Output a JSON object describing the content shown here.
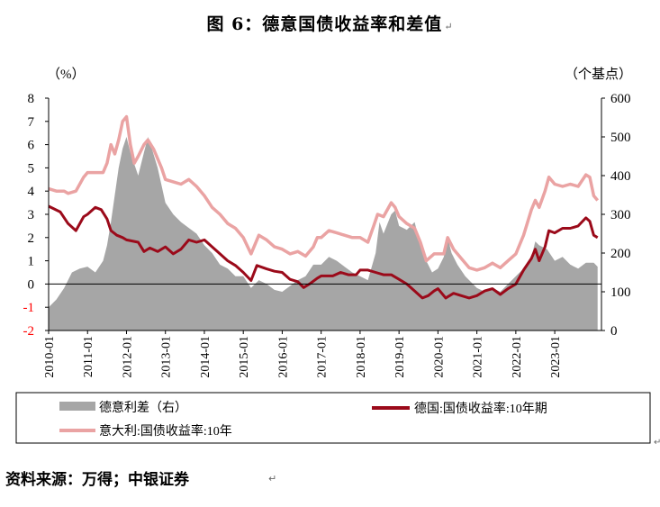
{
  "title": "图 6：德意国债收益率和差值",
  "paragraph_mark": "↵",
  "source": "资料来源：万得；中银证券",
  "colors": {
    "spread": "#a6a6a6",
    "de": "#9b0a1a",
    "it": "#eaa3a3",
    "negative_tick": "#ff0000"
  },
  "chart_data": {
    "type": "line+area",
    "left_axis": {
      "label": "（%）",
      "ylim": [
        -2,
        8
      ],
      "ticks": [
        "8",
        "7",
        "6",
        "5",
        "4",
        "3",
        "2",
        "1",
        "0",
        "-1",
        "-2"
      ]
    },
    "right_axis": {
      "label": "（个基点）",
      "ylim": [
        0,
        600
      ],
      "ticks": [
        "600",
        "500",
        "400",
        "300",
        "200",
        "100",
        "0"
      ]
    },
    "x_ticks": [
      "2010-01",
      "2011-01",
      "2012-01",
      "2013-01",
      "2014-01",
      "2015-01",
      "2016-01",
      "2017-01",
      "2018-01",
      "2019-01",
      "2020-01",
      "2021-01",
      "2022-01",
      "2023-01"
    ],
    "x_range": [
      2010.0,
      2024.2
    ],
    "legend": [
      "德意利差（右）",
      "德国:国债收益率:10年期",
      "意大利:国债收益率:10年"
    ],
    "series": [
      {
        "name": "德意利差（右）",
        "axis": "right",
        "type": "area",
        "points": [
          [
            2010.0,
            60
          ],
          [
            2010.2,
            80
          ],
          [
            2010.4,
            110
          ],
          [
            2010.6,
            150
          ],
          [
            2010.8,
            160
          ],
          [
            2011.0,
            165
          ],
          [
            2011.2,
            150
          ],
          [
            2011.4,
            180
          ],
          [
            2011.5,
            220
          ],
          [
            2011.6,
            280
          ],
          [
            2011.7,
            350
          ],
          [
            2011.8,
            420
          ],
          [
            2011.9,
            470
          ],
          [
            2012.0,
            500
          ],
          [
            2012.1,
            460
          ],
          [
            2012.2,
            430
          ],
          [
            2012.3,
            400
          ],
          [
            2012.45,
            460
          ],
          [
            2012.55,
            500
          ],
          [
            2012.65,
            470
          ],
          [
            2012.8,
            420
          ],
          [
            2013.0,
            330
          ],
          [
            2013.2,
            300
          ],
          [
            2013.4,
            280
          ],
          [
            2013.6,
            265
          ],
          [
            2013.8,
            250
          ],
          [
            2014.0,
            220
          ],
          [
            2014.2,
            200
          ],
          [
            2014.4,
            170
          ],
          [
            2014.6,
            160
          ],
          [
            2014.8,
            140
          ],
          [
            2015.0,
            140
          ],
          [
            2015.2,
            110
          ],
          [
            2015.4,
            130
          ],
          [
            2015.6,
            120
          ],
          [
            2015.8,
            105
          ],
          [
            2016.0,
            100
          ],
          [
            2016.2,
            115
          ],
          [
            2016.4,
            130
          ],
          [
            2016.6,
            140
          ],
          [
            2016.8,
            170
          ],
          [
            2017.0,
            170
          ],
          [
            2017.2,
            190
          ],
          [
            2017.4,
            180
          ],
          [
            2017.6,
            165
          ],
          [
            2017.8,
            150
          ],
          [
            2018.0,
            140
          ],
          [
            2018.2,
            130
          ],
          [
            2018.4,
            200
          ],
          [
            2018.5,
            280
          ],
          [
            2018.6,
            250
          ],
          [
            2018.8,
            300
          ],
          [
            2018.9,
            310
          ],
          [
            2019.0,
            270
          ],
          [
            2019.2,
            260
          ],
          [
            2019.4,
            280
          ],
          [
            2019.5,
            240
          ],
          [
            2019.7,
            180
          ],
          [
            2019.85,
            150
          ],
          [
            2020.0,
            160
          ],
          [
            2020.15,
            190
          ],
          [
            2020.25,
            240
          ],
          [
            2020.35,
            200
          ],
          [
            2020.5,
            170
          ],
          [
            2020.7,
            140
          ],
          [
            2020.9,
            120
          ],
          [
            2021.0,
            110
          ],
          [
            2021.2,
            100
          ],
          [
            2021.4,
            110
          ],
          [
            2021.6,
            100
          ],
          [
            2021.8,
            120
          ],
          [
            2022.0,
            140
          ],
          [
            2022.2,
            160
          ],
          [
            2022.4,
            190
          ],
          [
            2022.5,
            230
          ],
          [
            2022.6,
            220
          ],
          [
            2022.8,
            210
          ],
          [
            2023.0,
            180
          ],
          [
            2023.2,
            190
          ],
          [
            2023.4,
            170
          ],
          [
            2023.6,
            160
          ],
          [
            2023.8,
            175
          ],
          [
            2024.0,
            175
          ],
          [
            2024.1,
            165
          ]
        ]
      },
      {
        "name": "德国:国债收益率:10年期",
        "axis": "left",
        "type": "line",
        "points": [
          [
            2010.0,
            3.35
          ],
          [
            2010.3,
            3.1
          ],
          [
            2010.5,
            2.6
          ],
          [
            2010.7,
            2.3
          ],
          [
            2010.9,
            2.9
          ],
          [
            2011.0,
            3.0
          ],
          [
            2011.2,
            3.3
          ],
          [
            2011.35,
            3.2
          ],
          [
            2011.5,
            2.8
          ],
          [
            2011.6,
            2.3
          ],
          [
            2011.75,
            2.1
          ],
          [
            2011.9,
            2.0
          ],
          [
            2012.0,
            1.9
          ],
          [
            2012.3,
            1.8
          ],
          [
            2012.45,
            1.4
          ],
          [
            2012.6,
            1.55
          ],
          [
            2012.8,
            1.4
          ],
          [
            2013.0,
            1.6
          ],
          [
            2013.2,
            1.3
          ],
          [
            2013.4,
            1.5
          ],
          [
            2013.6,
            1.9
          ],
          [
            2013.8,
            1.8
          ],
          [
            2014.0,
            1.9
          ],
          [
            2014.2,
            1.6
          ],
          [
            2014.4,
            1.3
          ],
          [
            2014.6,
            1.0
          ],
          [
            2014.8,
            0.8
          ],
          [
            2015.0,
            0.5
          ],
          [
            2015.2,
            0.15
          ],
          [
            2015.35,
            0.8
          ],
          [
            2015.6,
            0.65
          ],
          [
            2015.8,
            0.55
          ],
          [
            2016.0,
            0.5
          ],
          [
            2016.2,
            0.2
          ],
          [
            2016.4,
            0.1
          ],
          [
            2016.55,
            -0.15
          ],
          [
            2016.7,
            0.0
          ],
          [
            2016.9,
            0.25
          ],
          [
            2017.0,
            0.35
          ],
          [
            2017.3,
            0.35
          ],
          [
            2017.5,
            0.5
          ],
          [
            2017.7,
            0.4
          ],
          [
            2017.9,
            0.4
          ],
          [
            2018.0,
            0.6
          ],
          [
            2018.2,
            0.6
          ],
          [
            2018.4,
            0.5
          ],
          [
            2018.6,
            0.4
          ],
          [
            2018.8,
            0.4
          ],
          [
            2019.0,
            0.2
          ],
          [
            2019.2,
            0.0
          ],
          [
            2019.4,
            -0.3
          ],
          [
            2019.6,
            -0.6
          ],
          [
            2019.75,
            -0.5
          ],
          [
            2019.9,
            -0.3
          ],
          [
            2020.0,
            -0.2
          ],
          [
            2020.2,
            -0.6
          ],
          [
            2020.4,
            -0.4
          ],
          [
            2020.6,
            -0.5
          ],
          [
            2020.8,
            -0.6
          ],
          [
            2021.0,
            -0.5
          ],
          [
            2021.2,
            -0.3
          ],
          [
            2021.4,
            -0.2
          ],
          [
            2021.6,
            -0.45
          ],
          [
            2021.8,
            -0.2
          ],
          [
            2022.0,
            0.0
          ],
          [
            2022.2,
            0.6
          ],
          [
            2022.4,
            1.1
          ],
          [
            2022.5,
            1.5
          ],
          [
            2022.6,
            1.0
          ],
          [
            2022.75,
            1.6
          ],
          [
            2022.85,
            2.3
          ],
          [
            2023.0,
            2.2
          ],
          [
            2023.2,
            2.4
          ],
          [
            2023.4,
            2.4
          ],
          [
            2023.6,
            2.5
          ],
          [
            2023.8,
            2.85
          ],
          [
            2023.9,
            2.7
          ],
          [
            2024.0,
            2.1
          ],
          [
            2024.1,
            2.0
          ]
        ]
      },
      {
        "name": "意大利:国债收益率:10年",
        "axis": "left",
        "type": "line",
        "points": [
          [
            2010.0,
            4.1
          ],
          [
            2010.2,
            4.0
          ],
          [
            2010.4,
            4.0
          ],
          [
            2010.5,
            3.9
          ],
          [
            2010.7,
            4.0
          ],
          [
            2010.9,
            4.6
          ],
          [
            2011.0,
            4.8
          ],
          [
            2011.2,
            4.8
          ],
          [
            2011.4,
            4.8
          ],
          [
            2011.5,
            5.2
          ],
          [
            2011.6,
            6.0
          ],
          [
            2011.7,
            5.6
          ],
          [
            2011.8,
            6.2
          ],
          [
            2011.9,
            7.0
          ],
          [
            2012.0,
            7.2
          ],
          [
            2012.1,
            6.0
          ],
          [
            2012.2,
            5.2
          ],
          [
            2012.3,
            5.5
          ],
          [
            2012.45,
            6.0
          ],
          [
            2012.55,
            6.2
          ],
          [
            2012.7,
            5.8
          ],
          [
            2012.9,
            5.0
          ],
          [
            2013.0,
            4.5
          ],
          [
            2013.2,
            4.4
          ],
          [
            2013.4,
            4.3
          ],
          [
            2013.6,
            4.5
          ],
          [
            2013.8,
            4.2
          ],
          [
            2014.0,
            3.8
          ],
          [
            2014.2,
            3.3
          ],
          [
            2014.4,
            3.0
          ],
          [
            2014.6,
            2.6
          ],
          [
            2014.8,
            2.4
          ],
          [
            2015.0,
            2.0
          ],
          [
            2015.2,
            1.3
          ],
          [
            2015.4,
            2.1
          ],
          [
            2015.6,
            1.9
          ],
          [
            2015.8,
            1.6
          ],
          [
            2016.0,
            1.5
          ],
          [
            2016.2,
            1.3
          ],
          [
            2016.4,
            1.4
          ],
          [
            2016.6,
            1.2
          ],
          [
            2016.8,
            1.6
          ],
          [
            2016.9,
            2.0
          ],
          [
            2017.0,
            2.0
          ],
          [
            2017.2,
            2.3
          ],
          [
            2017.4,
            2.2
          ],
          [
            2017.6,
            2.1
          ],
          [
            2017.8,
            2.0
          ],
          [
            2018.0,
            2.0
          ],
          [
            2018.2,
            1.8
          ],
          [
            2018.35,
            2.5
          ],
          [
            2018.45,
            3.0
          ],
          [
            2018.6,
            2.9
          ],
          [
            2018.8,
            3.5
          ],
          [
            2018.9,
            3.3
          ],
          [
            2019.0,
            2.9
          ],
          [
            2019.2,
            2.6
          ],
          [
            2019.4,
            2.4
          ],
          [
            2019.55,
            1.8
          ],
          [
            2019.7,
            1.0
          ],
          [
            2019.9,
            1.3
          ],
          [
            2020.0,
            1.3
          ],
          [
            2020.15,
            1.3
          ],
          [
            2020.25,
            2.0
          ],
          [
            2020.4,
            1.5
          ],
          [
            2020.6,
            1.1
          ],
          [
            2020.8,
            0.7
          ],
          [
            2021.0,
            0.6
          ],
          [
            2021.2,
            0.7
          ],
          [
            2021.4,
            0.9
          ],
          [
            2021.6,
            0.7
          ],
          [
            2021.8,
            1.0
          ],
          [
            2022.0,
            1.3
          ],
          [
            2022.2,
            2.1
          ],
          [
            2022.4,
            3.2
          ],
          [
            2022.5,
            3.6
          ],
          [
            2022.6,
            3.3
          ],
          [
            2022.75,
            4.0
          ],
          [
            2022.85,
            4.6
          ],
          [
            2023.0,
            4.3
          ],
          [
            2023.2,
            4.2
          ],
          [
            2023.4,
            4.3
          ],
          [
            2023.6,
            4.2
          ],
          [
            2023.8,
            4.7
          ],
          [
            2023.9,
            4.6
          ],
          [
            2024.0,
            3.8
          ],
          [
            2024.1,
            3.6
          ]
        ]
      }
    ]
  }
}
